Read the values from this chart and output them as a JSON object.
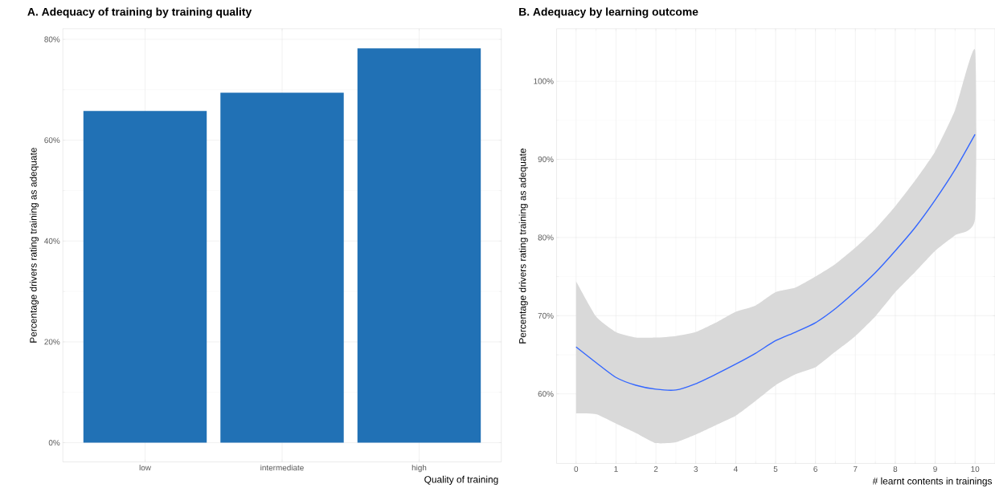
{
  "chart_data": [
    {
      "type": "bar",
      "title": "A. Adequacy of training by training quality",
      "xlabel": "Quality of training",
      "ylabel": "Percentage drivers rating training as adequate",
      "categories": [
        "low",
        "intermediate",
        "high"
      ],
      "values": [
        65.8,
        69.4,
        78.2
      ],
      "color": "#2171b5",
      "ylim": [
        -3.8,
        82.1
      ],
      "yticks": [
        {
          "value": 0,
          "label": "0%"
        },
        {
          "value": 20,
          "label": "20%"
        },
        {
          "value": 40,
          "label": "40%"
        },
        {
          "value": 60,
          "label": "60%"
        },
        {
          "value": 80,
          "label": "80%"
        }
      ],
      "grid": true
    },
    {
      "type": "line",
      "title": "B. Adequacy by learning outcome",
      "xlabel": "# learnt contents in trainings",
      "ylabel": "Percentage drivers rating training as adequate",
      "xlim": [
        -0.49,
        10.5
      ],
      "ylim": [
        51.1,
        106.7
      ],
      "xticks": [
        0,
        1,
        2,
        3,
        4,
        5,
        6,
        7,
        8,
        9,
        10
      ],
      "yticks": [
        {
          "value": 60,
          "label": "60%"
        },
        {
          "value": 70,
          "label": "70%"
        },
        {
          "value": 80,
          "label": "80%"
        },
        {
          "value": 90,
          "label": "90%"
        },
        {
          "value": 100,
          "label": "100%"
        }
      ],
      "grid": true,
      "x": [
        0,
        0.5,
        1,
        1.5,
        2,
        2.5,
        3,
        3.5,
        4,
        4.5,
        5,
        5.5,
        6,
        6.5,
        7,
        7.5,
        8,
        8.5,
        9,
        9.5,
        10
      ],
      "series": [
        {
          "color": "#3366ff",
          "values": [
            66.0,
            64.0,
            62.1,
            61.1,
            60.6,
            60.5,
            61.3,
            62.5,
            63.8,
            65.2,
            66.8,
            67.9,
            69.1,
            70.9,
            73.1,
            75.5,
            78.3,
            81.3,
            84.8,
            88.7,
            93.2
          ],
          "upper": [
            74.4,
            69.9,
            67.9,
            67.2,
            67.2,
            67.4,
            67.9,
            69.1,
            70.5,
            71.3,
            73.0,
            73.6,
            75.0,
            76.6,
            78.7,
            81.1,
            84.0,
            87.3,
            91.0,
            96.3,
            104.0
          ],
          "lower": [
            57.5,
            57.4,
            56.2,
            55.0,
            53.7,
            53.8,
            54.8,
            56.0,
            57.2,
            59.1,
            61.1,
            62.5,
            63.4,
            65.4,
            67.4,
            69.9,
            73.0,
            75.6,
            78.3,
            80.3,
            82.4
          ]
        }
      ]
    }
  ]
}
